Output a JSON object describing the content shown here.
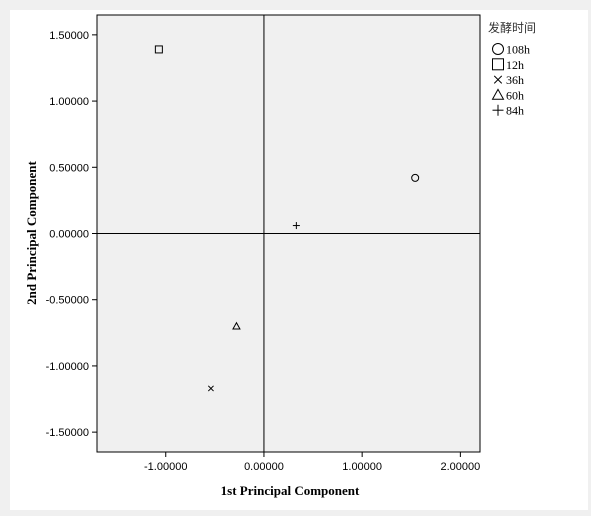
{
  "chart_data": {
    "type": "scatter",
    "xlabel": "1st Principal Component",
    "ylabel": "2nd Principal Component",
    "xlim": [
      -1.7,
      2.2
    ],
    "ylim": [
      -1.65,
      1.65
    ],
    "x_ticks": [
      -1.0,
      0.0,
      1.0,
      2.0
    ],
    "x_tick_labels": [
      "-1.00000",
      "0.00000",
      "1.00000",
      "2.00000"
    ],
    "y_ticks": [
      1.5,
      1.0,
      0.5,
      0.0,
      -0.5,
      -1.0,
      -1.5
    ],
    "y_tick_labels": [
      "1.50000",
      "1.00000",
      "0.50000",
      "0.00000",
      "-0.50000",
      "-1.00000",
      "-1.50000"
    ],
    "reference_lines": {
      "x": 0,
      "y": 0
    },
    "grid": false,
    "plot_background": "#f0f0f0",
    "legend": {
      "title": "发酵时间",
      "position": "right",
      "items": [
        {
          "label": "108h",
          "marker": "circle"
        },
        {
          "label": "12h",
          "marker": "square"
        },
        {
          "label": "36h",
          "marker": "x"
        },
        {
          "label": "60h",
          "marker": "triangle"
        },
        {
          "label": "84h",
          "marker": "plus"
        }
      ]
    },
    "series": [
      {
        "name": "108h",
        "marker": "circle",
        "points": [
          {
            "x": 1.54,
            "y": 0.42
          }
        ]
      },
      {
        "name": "12h",
        "marker": "square",
        "points": [
          {
            "x": -1.07,
            "y": 1.39
          }
        ]
      },
      {
        "name": "36h",
        "marker": "x",
        "points": [
          {
            "x": -0.54,
            "y": -1.17
          }
        ]
      },
      {
        "name": "60h",
        "marker": "triangle",
        "points": [
          {
            "x": -0.28,
            "y": -0.7
          }
        ]
      },
      {
        "name": "84h",
        "marker": "plus",
        "points": [
          {
            "x": 0.33,
            "y": 0.06
          }
        ]
      }
    ]
  }
}
